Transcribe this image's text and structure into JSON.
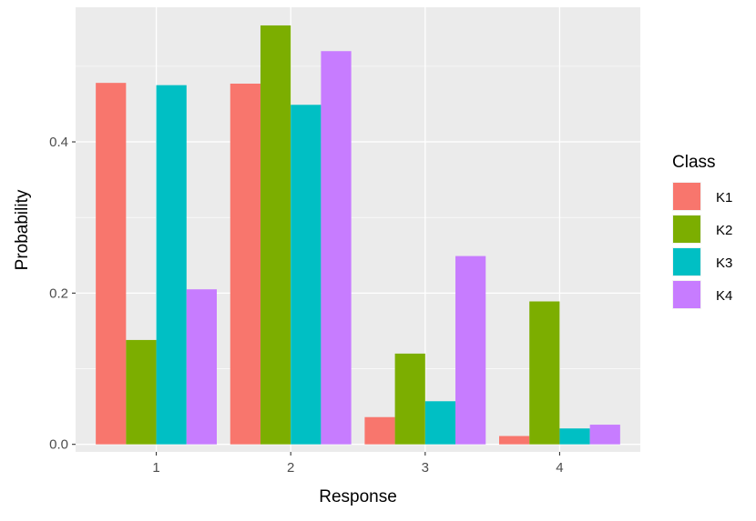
{
  "chart_data": {
    "type": "bar",
    "title": "",
    "xlabel": "Response",
    "ylabel": "Probability",
    "categories": [
      "1",
      "2",
      "3",
      "4"
    ],
    "ylim": [
      -0.01,
      0.578
    ],
    "yticks": [
      0.0,
      0.2,
      0.4
    ],
    "ytick_labels": [
      "0.0",
      "0.2",
      "0.4"
    ],
    "grid": true,
    "legend": {
      "title": "Class",
      "placement": "right"
    },
    "series": [
      {
        "name": "K1",
        "color": "#F8766D",
        "values": [
          0.478,
          0.477,
          0.036,
          0.011
        ]
      },
      {
        "name": "K2",
        "color": "#7CAE00",
        "values": [
          0.138,
          0.554,
          0.12,
          0.189
        ]
      },
      {
        "name": "K3",
        "color": "#00BFC4",
        "values": [
          0.475,
          0.449,
          0.057,
          0.021
        ]
      },
      {
        "name": "K4",
        "color": "#C77CFF",
        "values": [
          0.205,
          0.52,
          0.249,
          0.026
        ]
      }
    ]
  }
}
